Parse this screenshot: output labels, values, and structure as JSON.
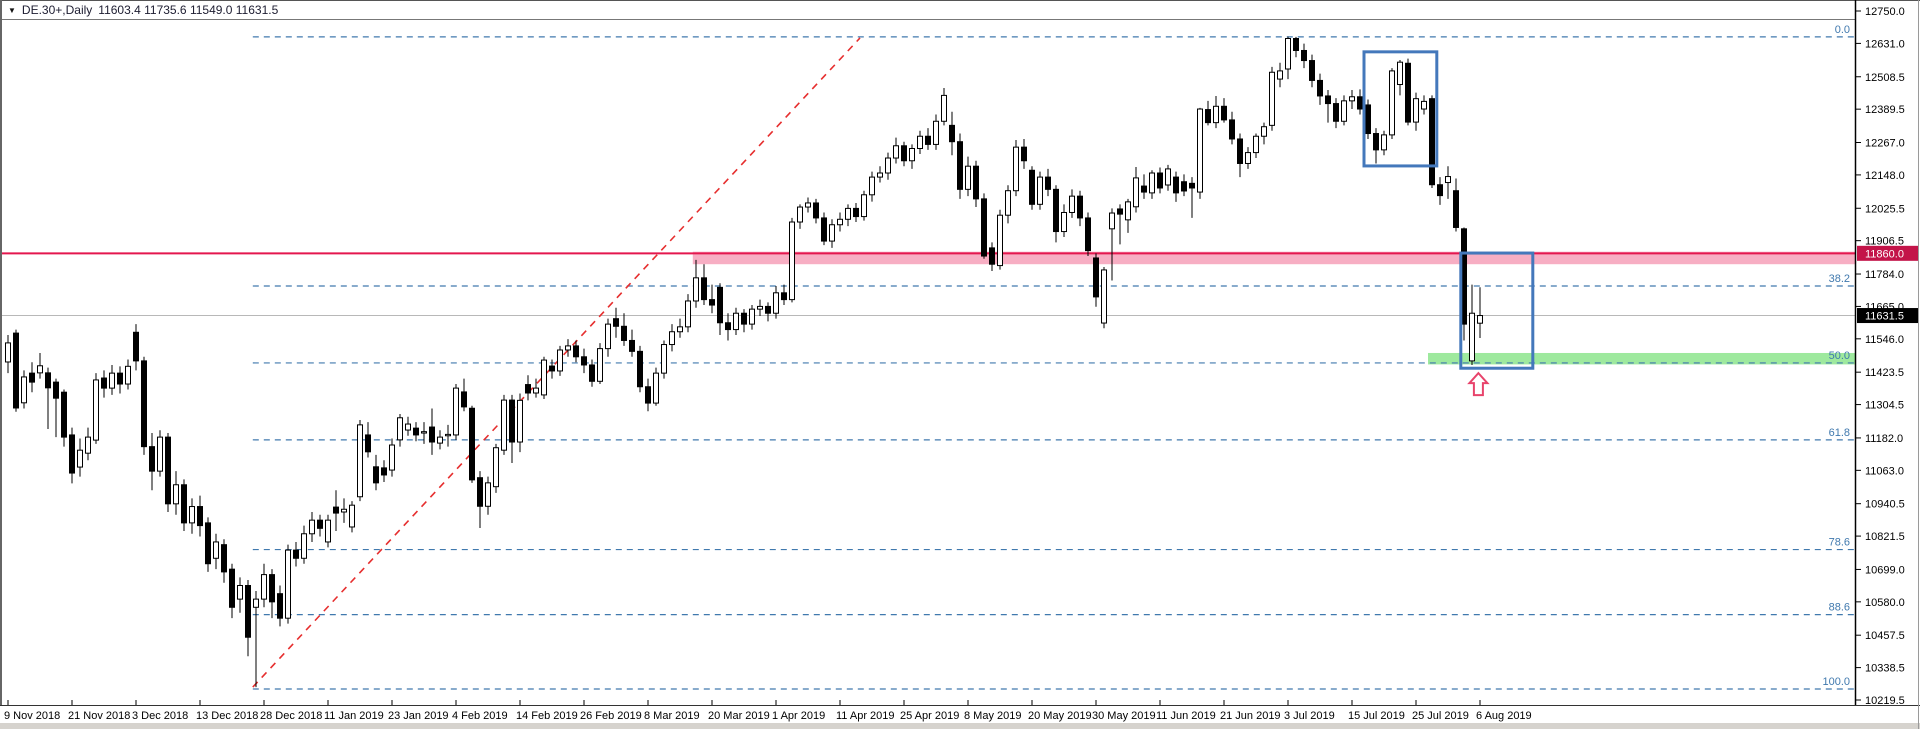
{
  "window": {
    "dropdown_icon": "▼",
    "title_symbol": "DE.30+,Daily",
    "title_ohlc": "11603.4 11735.6 11549.0 11631.5"
  },
  "price_axis": {
    "labels": [
      12750.0,
      12631.0,
      12508.5,
      12389.5,
      12267.0,
      12148.0,
      12025.5,
      11906.5,
      11784.0,
      11665.0,
      11546.0,
      11423.5,
      11304.5,
      11182.0,
      11063.0,
      10940.5,
      10821.5,
      10699.0,
      10580.0,
      10457.5,
      10338.5,
      10219.5
    ],
    "level_badge": {
      "value": "11860.0",
      "color": "#c31449",
      "price": 11860.0
    },
    "current_badge": {
      "value": "11631.5",
      "color": "#000000",
      "price": 11631.5
    }
  },
  "date_axis": {
    "labels": [
      "9 Nov 2018",
      "21 Nov 2018",
      "3 Dec 2018",
      "13 Dec 2018",
      "28 Dec 2018",
      "11 Jan 2019",
      "23 Jan 2019",
      "4 Feb 2019",
      "14 Feb 2019",
      "26 Feb 2019",
      "8 Mar 2019",
      "20 Mar 2019",
      "1 Apr 2019",
      "11 Apr 2019",
      "25 Apr 2019",
      "8 May 2019",
      "20 May 2019",
      "30 May 2019",
      "11 Jun 2019",
      "21 Jun 2019",
      "3 Jul 2019",
      "15 Jul 2019",
      "25 Jul 2019",
      "6 Aug 2019"
    ],
    "candles_per_tick": 8
  },
  "fibonacci": {
    "color": "#4079ae",
    "start_index": 30.6,
    "levels": [
      {
        "label": "0.0",
        "price": 12655.0
      },
      {
        "label": "38.2",
        "price": 11740.0
      },
      {
        "label": "50.0",
        "price": 11457.5
      },
      {
        "label": "61.8",
        "price": 11175.0
      },
      {
        "label": "78.6",
        "price": 10772.0
      },
      {
        "label": "88.6",
        "price": 10533.0
      },
      {
        "label": "100.0",
        "price": 10260.0
      }
    ]
  },
  "overlays": {
    "resistance_line": {
      "price": 11860.0,
      "color": "#e4174e"
    },
    "resistance_zone": {
      "price_top": 11866,
      "price_bottom": 11820,
      "from_index": 85.6,
      "color": "#f6a0b8"
    },
    "support_zone": {
      "price_top": 11494,
      "price_bottom": 11452,
      "from_index": 177.5,
      "color": "#93e793"
    },
    "current_price_line": {
      "price": 11631.5,
      "color": "#b8b8b8"
    },
    "trendline": {
      "from_index": 30.6,
      "from_price": 10267,
      "to_index": 106.5,
      "to_price": 12651,
      "color": "#e62e2e"
    },
    "rect_consolidation": {
      "from_index": 169.5,
      "to_index": 178.6,
      "price_top": 12600,
      "price_bottom": 12181,
      "color": "#4478bb"
    },
    "rect_breakdown": {
      "from_index": 181.6,
      "to_index": 190.6,
      "price_top": 11861,
      "price_bottom": 11438,
      "color": "#4478bb"
    },
    "arrow_up": {
      "index": 183.8,
      "price": 11420,
      "color": "#e8436b"
    }
  },
  "chart_data": {
    "type": "candlestick",
    "symbol": "DE.30+",
    "timeframe": "Daily",
    "title": "DE.30+,Daily",
    "last_bar": {
      "open": 11603.4,
      "high": 11735.6,
      "low": 11549.0,
      "close": 11631.5
    },
    "y_range": [
      10219.5,
      12750.0
    ],
    "x_range_dates": [
      "9 Nov 2018",
      "8 Aug 2019"
    ],
    "grid": false,
    "candles_ohlc": [
      [
        11461,
        11560,
        11420,
        11531
      ],
      [
        11567,
        11580,
        11278,
        11292
      ],
      [
        11311,
        11430,
        11290,
        11406
      ],
      [
        11420,
        11460,
        11350,
        11387
      ],
      [
        11421,
        11494,
        11400,
        11447
      ],
      [
        11421,
        11440,
        11215,
        11366
      ],
      [
        11387,
        11400,
        11185,
        11328
      ],
      [
        11350,
        11360,
        11150,
        11185
      ],
      [
        11193,
        11220,
        11015,
        11053
      ],
      [
        11075,
        11180,
        11040,
        11137
      ],
      [
        11126,
        11220,
        11100,
        11185
      ],
      [
        11174,
        11420,
        11160,
        11395
      ],
      [
        11402,
        11430,
        11330,
        11365
      ],
      [
        11365,
        11450,
        11340,
        11420
      ],
      [
        11420,
        11445,
        11345,
        11380
      ],
      [
        11380,
        11470,
        11360,
        11445
      ],
      [
        11570,
        11600,
        11430,
        11465
      ],
      [
        11465,
        11480,
        11120,
        11150
      ],
      [
        11150,
        11200,
        10990,
        11060
      ],
      [
        11060,
        11210,
        11040,
        11185
      ],
      [
        11185,
        11200,
        10910,
        10940
      ],
      [
        10940,
        11060,
        10900,
        11010
      ],
      [
        11010,
        11030,
        10840,
        10870
      ],
      [
        10870,
        10960,
        10830,
        10930
      ],
      [
        10930,
        10970,
        10820,
        10860
      ],
      [
        10870,
        10890,
        10690,
        10720
      ],
      [
        10740,
        10830,
        10700,
        10800
      ],
      [
        10790,
        10810,
        10650,
        10690
      ],
      [
        10700,
        10720,
        10520,
        10560
      ],
      [
        10590,
        10670,
        10540,
        10640
      ],
      [
        10640,
        10660,
        10380,
        10450
      ],
      [
        10560,
        10620,
        10267,
        10590
      ],
      [
        10590,
        10720,
        10560,
        10680
      ],
      [
        10680,
        10700,
        10520,
        10580
      ],
      [
        10610,
        10640,
        10490,
        10520
      ],
      [
        10520,
        10790,
        10500,
        10770
      ],
      [
        10770,
        10800,
        10710,
        10740
      ],
      [
        10740,
        10860,
        10720,
        10830
      ],
      [
        10830,
        10910,
        10800,
        10880
      ],
      [
        10880,
        10900,
        10820,
        10850
      ],
      [
        10800,
        10900,
        10780,
        10880
      ],
      [
        10928,
        10990,
        10840,
        10906
      ],
      [
        10910,
        10960,
        10870,
        10920
      ],
      [
        10855,
        10950,
        10835,
        10935
      ],
      [
        10966,
        11248,
        10950,
        11230
      ],
      [
        11193,
        11240,
        11110,
        11131
      ],
      [
        11076,
        11120,
        10990,
        11017
      ],
      [
        11072,
        11100,
        11020,
        11046
      ],
      [
        11064,
        11180,
        11040,
        11156
      ],
      [
        11175,
        11270,
        11150,
        11256
      ],
      [
        11211,
        11260,
        11190,
        11233
      ],
      [
        11218,
        11240,
        11170,
        11193
      ],
      [
        11200,
        11240,
        11160,
        11205
      ],
      [
        11222,
        11290,
        11120,
        11167
      ],
      [
        11163,
        11210,
        11140,
        11185
      ],
      [
        11190,
        11230,
        11150,
        11195
      ],
      [
        11193,
        11380,
        11175,
        11365
      ],
      [
        11351,
        11400,
        11280,
        11296
      ],
      [
        11291,
        11300,
        11017,
        11028
      ],
      [
        11036,
        11060,
        10851,
        10931
      ],
      [
        10931,
        11040,
        10900,
        11017
      ],
      [
        11003,
        11160,
        10980,
        11146
      ],
      [
        11137,
        11340,
        11120,
        11321
      ],
      [
        11321,
        11340,
        11090,
        11167
      ],
      [
        11167,
        11345,
        11130,
        11320
      ],
      [
        11378,
        11412,
        11320,
        11347
      ],
      [
        11347,
        11400,
        11330,
        11365
      ],
      [
        11340,
        11480,
        11325,
        11468
      ],
      [
        11446,
        11470,
        11400,
        11428
      ],
      [
        11428,
        11520,
        11410,
        11505
      ],
      [
        11505,
        11545,
        11480,
        11520
      ],
      [
        11520,
        11540,
        11460,
        11480
      ],
      [
        11480,
        11510,
        11420,
        11450
      ],
      [
        11450,
        11470,
        11370,
        11390
      ],
      [
        11390,
        11530,
        11380,
        11510
      ],
      [
        11510,
        11620,
        11480,
        11600
      ],
      [
        11620,
        11660,
        11550,
        11592
      ],
      [
        11592,
        11640,
        11520,
        11540
      ],
      [
        11540,
        11580,
        11480,
        11500
      ],
      [
        11500,
        11520,
        11350,
        11370
      ],
      [
        11370,
        11400,
        11280,
        11310
      ],
      [
        11310,
        11440,
        11300,
        11420
      ],
      [
        11420,
        11540,
        11400,
        11525
      ],
      [
        11525,
        11600,
        11500,
        11572
      ],
      [
        11572,
        11620,
        11550,
        11590
      ],
      [
        11590,
        11710,
        11570,
        11685
      ],
      [
        11685,
        11836,
        11660,
        11770
      ],
      [
        11770,
        11820,
        11670,
        11690
      ],
      [
        11690,
        11745,
        11640,
        11670
      ],
      [
        11735,
        11750,
        11560,
        11605
      ],
      [
        11605,
        11640,
        11540,
        11580
      ],
      [
        11580,
        11660,
        11560,
        11640
      ],
      [
        11640,
        11655,
        11570,
        11600
      ],
      [
        11600,
        11670,
        11580,
        11655
      ],
      [
        11655,
        11690,
        11630,
        11665
      ],
      [
        11665,
        11680,
        11610,
        11640
      ],
      [
        11640,
        11740,
        11620,
        11715
      ],
      [
        11715,
        11745,
        11670,
        11690
      ],
      [
        11690,
        11990,
        11680,
        11975
      ],
      [
        11975,
        12040,
        11950,
        12030
      ],
      [
        12030,
        12065,
        12010,
        12045
      ],
      [
        12045,
        12060,
        11970,
        11990
      ],
      [
        11990,
        12010,
        11890,
        11905
      ],
      [
        11905,
        11985,
        11880,
        11965
      ],
      [
        11965,
        12010,
        11940,
        11985
      ],
      [
        11985,
        12040,
        11960,
        12025
      ],
      [
        12025,
        12045,
        11975,
        11995
      ],
      [
        11995,
        12090,
        11980,
        12075
      ],
      [
        12075,
        12160,
        12050,
        12140
      ],
      [
        12140,
        12180,
        12120,
        12155
      ],
      [
        12155,
        12230,
        12130,
        12210
      ],
      [
        12210,
        12285,
        12190,
        12255
      ],
      [
        12255,
        12270,
        12180,
        12200
      ],
      [
        12200,
        12260,
        12170,
        12245
      ],
      [
        12245,
        12310,
        12225,
        12290
      ],
      [
        12290,
        12320,
        12240,
        12260
      ],
      [
        12260,
        12370,
        12240,
        12345
      ],
      [
        12345,
        12467,
        12330,
        12440
      ],
      [
        12330,
        12380,
        12220,
        12270
      ],
      [
        12270,
        12300,
        12060,
        12095
      ],
      [
        12095,
        12215,
        12070,
        12180
      ],
      [
        12180,
        12200,
        12030,
        12060
      ],
      [
        12060,
        12080,
        11840,
        11850
      ],
      [
        11880,
        11900,
        11795,
        11820
      ],
      [
        11815,
        12020,
        11800,
        12000
      ],
      [
        12000,
        12110,
        11970,
        12090
      ],
      [
        12090,
        12276,
        12070,
        12250
      ],
      [
        12250,
        12280,
        12170,
        12200
      ],
      [
        12165,
        12180,
        12020,
        12040
      ],
      [
        12040,
        12160,
        12020,
        12140
      ],
      [
        12140,
        12170,
        12070,
        12095
      ],
      [
        12095,
        12110,
        11900,
        11940
      ],
      [
        11940,
        12040,
        11920,
        12010
      ],
      [
        12010,
        12095,
        11990,
        12070
      ],
      [
        12070,
        12090,
        11960,
        11990
      ],
      [
        11990,
        12010,
        11850,
        11870
      ],
      [
        11843,
        11860,
        11664,
        11700
      ],
      [
        11604,
        11810,
        11585,
        11799
      ],
      [
        11950,
        12025,
        11760,
        12008
      ],
      [
        12023,
        12040,
        11893,
        12004
      ],
      [
        11983,
        12060,
        11935,
        12049
      ],
      [
        12031,
        12177,
        12010,
        12137
      ],
      [
        12107,
        12150,
        12060,
        12085
      ],
      [
        12082,
        12165,
        12060,
        12155
      ],
      [
        12155,
        12175,
        12080,
        12100
      ],
      [
        12111,
        12185,
        12090,
        12170
      ],
      [
        12140,
        12160,
        12049,
        12082
      ],
      [
        12123,
        12150,
        12070,
        12089
      ],
      [
        12117,
        12140,
        11990,
        12100
      ],
      [
        12085,
        12394,
        12060,
        12390
      ],
      [
        12388,
        12420,
        12330,
        12340
      ],
      [
        12340,
        12438,
        12320,
        12400
      ],
      [
        12400,
        12430,
        12340,
        12350
      ],
      [
        12350,
        12380,
        12260,
        12280
      ],
      [
        12280,
        12300,
        12140,
        12190
      ],
      [
        12190,
        12250,
        12170,
        12230
      ],
      [
        12230,
        12300,
        12210,
        12290
      ],
      [
        12290,
        12340,
        12260,
        12325
      ],
      [
        12330,
        12545,
        12310,
        12525
      ],
      [
        12500,
        12560,
        12470,
        12530
      ],
      [
        12537,
        12656,
        12500,
        12649
      ],
      [
        12649,
        12655,
        12580,
        12605
      ],
      [
        12605,
        12630,
        12540,
        12568
      ],
      [
        12568,
        12590,
        12470,
        12495
      ],
      [
        12495,
        12520,
        12405,
        12438
      ],
      [
        12438,
        12460,
        12340,
        12410
      ],
      [
        12410,
        12430,
        12320,
        12345
      ],
      [
        12345,
        12440,
        12330,
        12420
      ],
      [
        12420,
        12460,
        12390,
        12435
      ],
      [
        12435,
        12462,
        12370,
        12390
      ],
      [
        12405,
        12425,
        12280,
        12300
      ],
      [
        12300,
        12320,
        12190,
        12240
      ],
      [
        12240,
        12310,
        12220,
        12295
      ],
      [
        12295,
        12540,
        12280,
        12530
      ],
      [
        12480,
        12570,
        12440,
        12562
      ],
      [
        12558,
        12575,
        12330,
        12342
      ],
      [
        12342,
        12450,
        12310,
        12428
      ],
      [
        12390,
        12440,
        12370,
        12418
      ],
      [
        12428,
        12440,
        12100,
        12112
      ],
      [
        12112,
        12140,
        12038,
        12072
      ],
      [
        12120,
        12180,
        12060,
        12142
      ],
      [
        12090,
        12135,
        11940,
        11955
      ],
      [
        11950,
        11955,
        11540,
        11600
      ],
      [
        11465,
        11745,
        11450,
        11640
      ],
      [
        11603.4,
        11735.6,
        11549.0,
        11631.5
      ]
    ]
  }
}
